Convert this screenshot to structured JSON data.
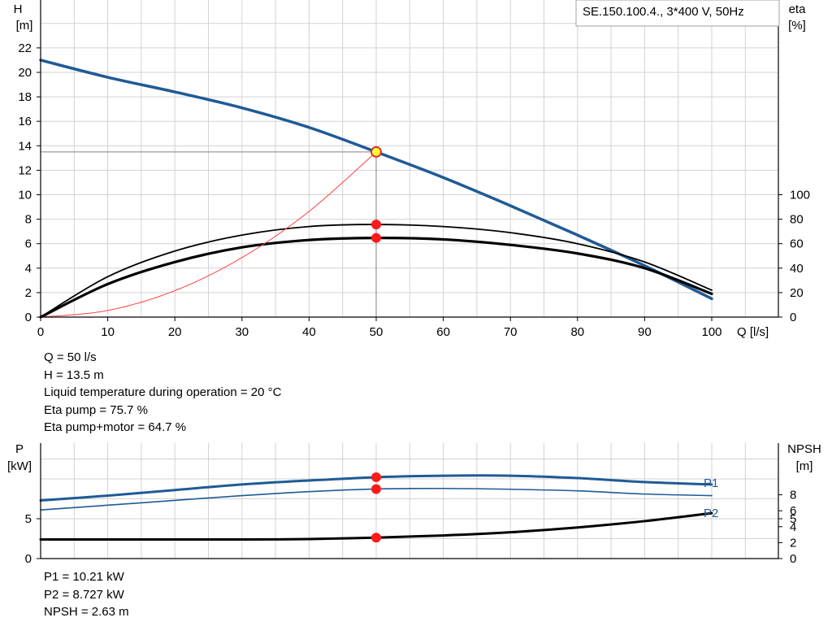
{
  "chart_data": [
    {
      "type": "line",
      "title": "SE.150.100.4., 3*400 V, 50Hz",
      "xlabel": "Q [l/s]",
      "ylabel_main": "H",
      "ylabel_unit": "[m]",
      "ylabel_right": "eta",
      "ylabel_right_unit": "[%]",
      "xlim": [
        0,
        100
      ],
      "ylim": [
        0,
        24
      ],
      "y2lim": [
        0,
        100
      ],
      "x_ticks": [
        0,
        10,
        20,
        30,
        40,
        50,
        60,
        70,
        80,
        90,
        100
      ],
      "y_ticks": [
        0,
        2,
        4,
        6,
        8,
        10,
        12,
        14,
        16,
        18,
        20,
        22
      ],
      "y2_ticks": [
        0,
        20,
        40,
        60,
        80,
        100
      ],
      "grid": true,
      "series": [
        {
          "key": "H",
          "color": "#1f5a96",
          "width": 3.5,
          "x": [
            0,
            10,
            20,
            30,
            40,
            50,
            60,
            70,
            80,
            90,
            100
          ],
          "y": [
            21.0,
            19.6,
            18.4,
            17.1,
            15.5,
            13.5,
            11.4,
            9.1,
            6.7,
            4.2,
            1.5
          ]
        },
        {
          "key": "eta_pump",
          "color": "#000000",
          "width": 1.8,
          "x": [
            0,
            10,
            20,
            30,
            40,
            50,
            60,
            70,
            80,
            90,
            100
          ],
          "y": [
            0,
            33,
            54,
            67,
            74,
            75.7,
            74,
            69,
            60,
            45,
            22
          ]
        },
        {
          "key": "eta_total",
          "color": "#000000",
          "width": 3.2,
          "x": [
            0,
            10,
            20,
            30,
            40,
            50,
            60,
            70,
            80,
            90,
            100
          ],
          "y": [
            0,
            27,
            45,
            57,
            63,
            64.7,
            63.5,
            59,
            52,
            40,
            19
          ]
        },
        {
          "key": "system_curve",
          "color": "#ff4040",
          "width": 1,
          "x": [
            0,
            10,
            20,
            30,
            40,
            50
          ],
          "y": [
            0,
            0.54,
            2.16,
            4.86,
            8.64,
            13.5
          ]
        }
      ],
      "operating_point": {
        "x": 50,
        "y": 13.5
      },
      "marker_eta_pump": {
        "x": 50,
        "y": 75.7
      },
      "marker_eta_total": {
        "x": 50,
        "y": 64.7
      }
    },
    {
      "type": "line",
      "ylabel_main": "P",
      "ylabel_unit": "[kW]",
      "ylabel_right": "NPSH",
      "ylabel_right_unit": "[m]",
      "xlim": [
        0,
        100
      ],
      "ylim": [
        0,
        12
      ],
      "y2lim": [
        0,
        12
      ],
      "y_ticks": [
        0,
        5
      ],
      "y2_ticks": [
        0,
        2,
        4,
        5,
        6,
        8
      ],
      "grid": true,
      "series": [
        {
          "key": "P1",
          "name": "P1",
          "color": "#1f5a96",
          "width": 3,
          "x": [
            0,
            10,
            20,
            30,
            40,
            50,
            60,
            70,
            80,
            90,
            100
          ],
          "y": [
            7.3,
            7.9,
            8.6,
            9.3,
            9.8,
            10.21,
            10.4,
            10.4,
            10.1,
            9.6,
            9.3
          ]
        },
        {
          "key": "P2",
          "name": "P2",
          "color": "#1f5a96",
          "width": 1.6,
          "x": [
            0,
            10,
            20,
            30,
            40,
            50,
            60,
            70,
            80,
            90,
            100
          ],
          "y": [
            6.1,
            6.7,
            7.3,
            7.9,
            8.4,
            8.727,
            8.8,
            8.7,
            8.5,
            8.1,
            7.9
          ]
        },
        {
          "key": "NPSH",
          "color": "#000000",
          "width": 3,
          "x": [
            0,
            10,
            20,
            30,
            40,
            50,
            60,
            70,
            80,
            90,
            100
          ],
          "y": [
            2.4,
            2.4,
            2.4,
            2.4,
            2.45,
            2.63,
            2.9,
            3.3,
            3.9,
            4.7,
            5.7
          ]
        }
      ],
      "marker_P1": {
        "x": 50,
        "y": 10.21
      },
      "marker_P2": {
        "x": 50,
        "y": 8.727
      },
      "marker_NPSH": {
        "x": 50,
        "y": 2.63
      }
    }
  ],
  "info_top": [
    "Q = 50 l/s",
    "H = 13.5 m",
    "Liquid temperature during operation = 20 °C",
    "Eta pump = 75.7 %",
    "Eta pump+motor = 64.7 %"
  ],
  "info_bottom": [
    "P1 = 10.21 kW",
    "P2 = 8.727 kW",
    "NPSH = 2.63 m"
  ]
}
